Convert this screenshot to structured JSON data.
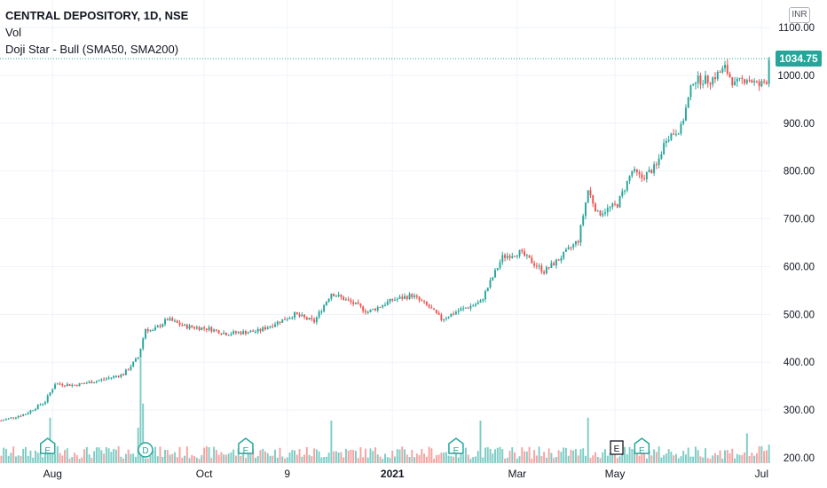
{
  "header": {
    "symbol_line": "CENTRAL DEPOSITORY, 1D, NSE",
    "vol_label": "Vol",
    "indicator_line": "Doji Star - Bull (SMA50, SMA200)"
  },
  "currency_badge": "INR",
  "last_price_label": "1034.75",
  "colors": {
    "up": "#26a69a",
    "down": "#ef5350",
    "volume_up": "#7dcdc5",
    "volume_down": "#f5a3a1",
    "grid": "#f0f3fa",
    "last_price_line": "#26a69a",
    "axis_text": "#131722"
  },
  "chart_data": {
    "type": "candlestick",
    "title": "CENTRAL DEPOSITORY, 1D, NSE",
    "y_unit": "INR",
    "y_ticks": [
      200,
      300,
      400,
      500,
      600,
      700,
      800,
      900,
      1000,
      1100
    ],
    "y_tick_labels": [
      "200.00",
      "300.00",
      "400.00",
      "500.00",
      "600.00",
      "700.00",
      "800.00",
      "900.00",
      "1000.00",
      "1100.00"
    ],
    "ylim": [
      195,
      1120
    ],
    "x_tick_labels": [
      "Aug",
      "Oct",
      "9",
      "2021",
      "Mar",
      "May",
      "Jul"
    ],
    "x_tick_bold": [
      false,
      false,
      false,
      true,
      false,
      false,
      false
    ],
    "x_tick_day_index": [
      21,
      83,
      117,
      160,
      211,
      251,
      311
    ],
    "last_price": 1034.75,
    "grid": true,
    "day_count": 315,
    "price_anchors": [
      [
        0,
        278
      ],
      [
        10,
        292
      ],
      [
        18,
        318
      ],
      [
        22,
        355
      ],
      [
        30,
        352
      ],
      [
        40,
        362
      ],
      [
        50,
        375
      ],
      [
        56,
        410
      ],
      [
        59,
        470
      ],
      [
        62,
        465
      ],
      [
        68,
        490
      ],
      [
        75,
        475
      ],
      [
        85,
        470
      ],
      [
        92,
        460
      ],
      [
        105,
        465
      ],
      [
        120,
        500
      ],
      [
        128,
        485
      ],
      [
        135,
        545
      ],
      [
        145,
        520
      ],
      [
        150,
        505
      ],
      [
        160,
        530
      ],
      [
        168,
        540
      ],
      [
        175,
        515
      ],
      [
        180,
        490
      ],
      [
        188,
        510
      ],
      [
        196,
        525
      ],
      [
        205,
        620
      ],
      [
        212,
        630
      ],
      [
        222,
        590
      ],
      [
        228,
        615
      ],
      [
        236,
        655
      ],
      [
        240,
        760
      ],
      [
        244,
        710
      ],
      [
        252,
        730
      ],
      [
        258,
        800
      ],
      [
        262,
        785
      ],
      [
        268,
        810
      ],
      [
        272,
        870
      ],
      [
        278,
        890
      ],
      [
        283,
        990
      ],
      [
        290,
        990
      ],
      [
        296,
        1015
      ],
      [
        300,
        980
      ],
      [
        305,
        995
      ],
      [
        310,
        978
      ],
      [
        313,
        990
      ],
      [
        314,
        1034.75
      ]
    ],
    "volume_events": [
      {
        "index": 20,
        "volume": 3.2
      },
      {
        "index": 56,
        "volume": 2.5
      },
      {
        "index": 57,
        "volume": 7.4
      },
      {
        "index": 58,
        "volume": 4.2
      },
      {
        "index": 135,
        "volume": 3.0
      },
      {
        "index": 196,
        "volume": 3.0
      },
      {
        "index": 240,
        "volume": 3.2
      },
      {
        "index": 305,
        "volume": 2.1
      },
      {
        "index": 314,
        "volume": 1.3
      }
    ],
    "markers": [
      {
        "label": "E",
        "index": 19
      },
      {
        "label": "D",
        "index": 59
      },
      {
        "label": "E",
        "index": 100
      },
      {
        "label": "E",
        "index": 186
      },
      {
        "label": "E",
        "index": 262
      }
    ]
  }
}
